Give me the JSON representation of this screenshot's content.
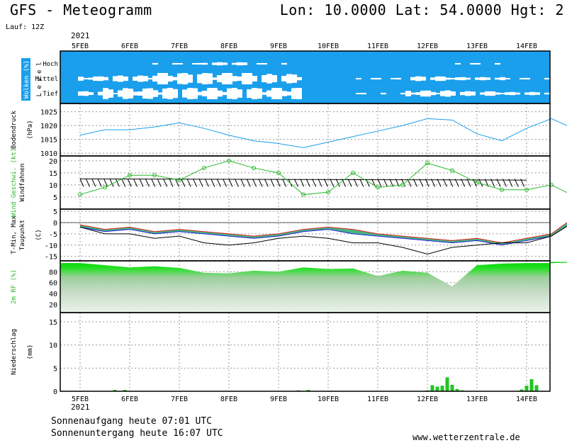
{
  "header": {
    "title": "GFS - Meteogramm",
    "coords": "Lon: 10.0000  Lat: 54.0000  Hgt: 2",
    "run": "Lauf: 12Z",
    "year_top": "2021",
    "year_bottom": "2021"
  },
  "footer": {
    "sunrise": "Sonnenaufgang heute 07:01 UTC",
    "sunset": "Sonnenuntergang heute 16:07 UTC",
    "website": "www.wetterzentrale.de"
  },
  "colors": {
    "cloud": "#1a9fec",
    "pressure": "#1a9fec",
    "wind": "#2db82d",
    "rf": "#2bd42b",
    "precip": "#22c422",
    "tmax": "#e02020",
    "tmin": "#2020e0"
  },
  "chart_data": [
    {
      "type": "table",
      "panel": "clouds",
      "ylabel": "Wolken (%)",
      "ylabel_side": "L e v e l",
      "levels": [
        "Hoch",
        "Mittel",
        "Tief"
      ],
      "x_ticks": [
        "5FEB",
        "6FEB",
        "7FEB",
        "8FEB",
        "9FEB",
        "10FEB",
        "11FEB",
        "12FEB",
        "13FEB",
        "14FEB"
      ],
      "cloud_cover_percent_by_level": {
        "Hoch": [
          100,
          100,
          90,
          80,
          90,
          100,
          100,
          100,
          90,
          100
        ],
        "Mittel": [
          70,
          60,
          20,
          15,
          40,
          100,
          90,
          70,
          80,
          90
        ],
        "Tief": [
          70,
          30,
          20,
          20,
          20,
          100,
          90,
          60,
          70,
          80
        ]
      }
    },
    {
      "type": "line",
      "panel": "pressure",
      "ylabel": "Bodendruck (hPa)",
      "ylim": [
        1009,
        1028
      ],
      "yticks": [
        1010,
        1015,
        1020,
        1025
      ],
      "x": [
        0,
        0.5,
        1,
        1.5,
        2,
        2.5,
        3,
        3.5,
        4,
        4.5,
        5,
        5.5,
        6,
        6.5,
        7,
        7.5,
        8,
        8.5,
        9,
        9.5,
        10,
        10.5
      ],
      "values": [
        1016.5,
        1018.5,
        1018.5,
        1019.5,
        1021,
        1019,
        1016.5,
        1014.5,
        1013.5,
        1012,
        1014,
        1016,
        1018,
        1020,
        1022.5,
        1022,
        1017,
        1014.5,
        1019,
        1022.5,
        1018.5,
        1026.5
      ]
    },
    {
      "type": "line",
      "panel": "wind",
      "ylabel": "Wind Geschwi. (kt)",
      "ylabel_side": "Windfahnen",
      "ylim": [
        0,
        22
      ],
      "yticks": [
        5,
        10,
        15,
        20
      ],
      "x": [
        0,
        0.5,
        1,
        1.5,
        2,
        2.5,
        3,
        3.5,
        4,
        4.5,
        5,
        5.5,
        6,
        6.5,
        7,
        7.5,
        8,
        8.5,
        9,
        9.5,
        10,
        10.5
      ],
      "values": [
        6,
        9,
        14,
        14,
        12,
        17,
        20,
        17,
        15,
        6,
        7,
        15,
        9,
        10,
        19,
        16,
        11,
        8,
        8,
        10,
        5,
        0.5
      ]
    },
    {
      "type": "line",
      "panel": "temperature",
      "ylabel": "T-Min, Max (C)",
      "ylabel_side": "Taupunkt",
      "ylim": [
        -17,
        6
      ],
      "yticks": [
        -15,
        -10,
        -5,
        0,
        5
      ],
      "x": [
        0,
        0.5,
        1,
        1.5,
        2,
        2.5,
        3,
        3.5,
        4,
        4.5,
        5,
        5.5,
        6,
        6.5,
        7,
        7.5,
        8,
        8.5,
        9,
        9.5,
        10,
        10.5
      ],
      "series": [
        {
          "name": "T-Max",
          "values": [
            -1,
            -3,
            -2,
            -4,
            -3,
            -4,
            -5,
            -6,
            -5,
            -3,
            -2,
            -3,
            -5,
            -6,
            -7,
            -8,
            -7,
            -9,
            -7,
            -5,
            3,
            -1
          ]
        },
        {
          "name": "T-Min",
          "values": [
            -2,
            -4,
            -3,
            -5,
            -4,
            -5,
            -6,
            -7,
            -6,
            -4,
            -3,
            -5,
            -6,
            -7,
            -8,
            -9,
            -8,
            -10,
            -8,
            -6,
            1,
            -2
          ]
        },
        {
          "name": "Taupunkt",
          "values": [
            -2,
            -5,
            -5,
            -7,
            -6,
            -9,
            -10,
            -9,
            -7,
            -6,
            -7,
            -9,
            -9,
            -11,
            -14,
            -11,
            -10,
            -9,
            -9,
            -6,
            1,
            -1
          ]
        }
      ]
    },
    {
      "type": "area",
      "panel": "humidity",
      "ylabel": "2m RF (%)",
      "ylim": [
        5,
        100
      ],
      "yticks": [
        20,
        40,
        60,
        80
      ],
      "x": [
        0,
        0.5,
        1,
        1.5,
        2,
        2.5,
        3,
        3.5,
        4,
        4.5,
        5,
        5.5,
        6,
        6.5,
        7,
        7.5,
        8,
        8.5,
        9,
        9.5,
        10,
        10.5
      ],
      "values": [
        96,
        92,
        88,
        90,
        87,
        78,
        77,
        82,
        80,
        88,
        85,
        86,
        72,
        82,
        78,
        53,
        92,
        95,
        96,
        96,
        97,
        98
      ]
    },
    {
      "type": "bar",
      "panel": "precipitation",
      "ylabel": "Niederschlag (mm)",
      "ylim": [
        0,
        17
      ],
      "yticks": [
        0,
        5,
        10,
        15
      ],
      "x": [
        0.7,
        0.9,
        4.4,
        4.6,
        7.0,
        7.1,
        7.2,
        7.3,
        7.4,
        7.5,
        7.6,
        7.7,
        8.9,
        9.0,
        9.1,
        9.2
      ],
      "values": [
        0.3,
        0.3,
        0.2,
        0.3,
        0.2,
        1.3,
        1.0,
        1.2,
        3.0,
        1.4,
        0.5,
        0.2,
        0.4,
        1.2,
        2.6,
        1.3
      ]
    }
  ]
}
